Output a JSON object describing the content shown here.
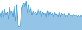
{
  "chart_data": {
    "type": "area",
    "categories": [
      null,
      null,
      null,
      null,
      null,
      null,
      null,
      null,
      null,
      null,
      null,
      null,
      null,
      null,
      null,
      null,
      null,
      null,
      null,
      null,
      null,
      null,
      null,
      null,
      null,
      null,
      null,
      null,
      null,
      null,
      null,
      null,
      null,
      null,
      null,
      null,
      null,
      null,
      null,
      null,
      null,
      null,
      null,
      null,
      null,
      null,
      null,
      null,
      null,
      null,
      null,
      null,
      null,
      null,
      null,
      null,
      null,
      null,
      null,
      null,
      null,
      null,
      null,
      null,
      null,
      null,
      null,
      null,
      null,
      null
    ],
    "values": [
      55,
      40,
      65,
      45,
      70,
      50,
      60,
      35,
      75,
      55,
      65,
      45,
      80,
      30,
      85,
      20,
      10,
      15,
      70,
      85,
      90,
      75,
      95,
      55,
      85,
      60,
      75,
      50,
      65,
      55,
      60,
      50,
      70,
      55,
      65,
      45,
      60,
      50,
      55,
      40,
      65,
      45,
      60,
      50,
      55,
      45,
      60,
      50,
      55,
      45,
      60,
      45,
      55,
      50,
      55,
      45,
      50,
      45,
      55,
      50,
      48,
      45,
      52,
      48,
      50,
      45,
      48,
      44,
      50,
      45
    ],
    "color": "#4d9fd6",
    "ylim": [
      0,
      100
    ],
    "grid": false,
    "tick_labels": false
  }
}
